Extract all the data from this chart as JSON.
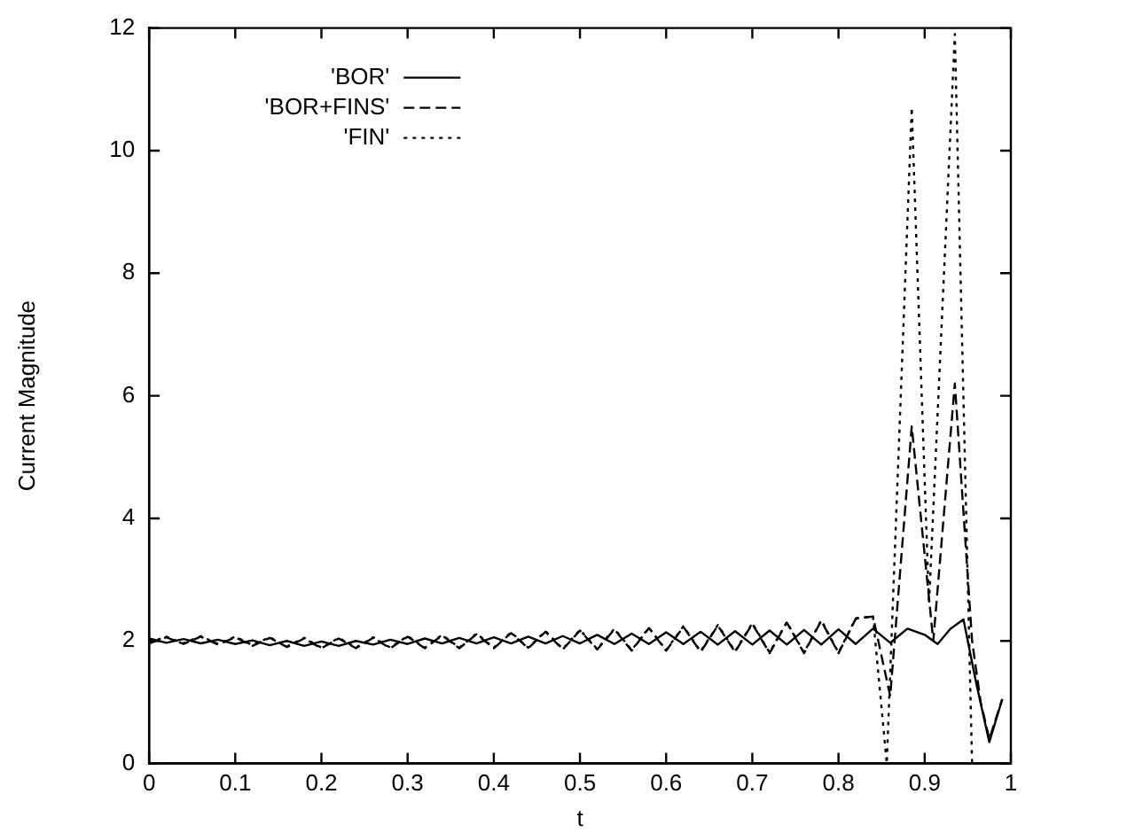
{
  "chart_data": {
    "type": "line",
    "xlabel": "t",
    "ylabel": "Current Magnitude",
    "xlim": [
      0,
      1
    ],
    "ylim": [
      0,
      12
    ],
    "xticks": [
      0,
      0.1,
      0.2,
      0.3,
      0.4,
      0.5,
      0.6,
      0.7,
      0.8,
      0.9,
      1
    ],
    "yticks": [
      0,
      2,
      4,
      6,
      8,
      10,
      12
    ],
    "grid": false,
    "legend": "top",
    "marker": "none",
    "series": [
      {
        "name": "'BOR'",
        "color": "#000000",
        "line_style": "solid",
        "x": [
          0,
          0.02,
          0.04,
          0.06,
          0.08,
          0.1,
          0.12,
          0.14,
          0.16,
          0.18,
          0.2,
          0.22,
          0.24,
          0.26,
          0.28,
          0.3,
          0.32,
          0.34,
          0.36,
          0.38,
          0.4,
          0.42,
          0.44,
          0.46,
          0.48,
          0.5,
          0.52,
          0.54,
          0.56,
          0.58,
          0.6,
          0.62,
          0.64,
          0.66,
          0.68,
          0.7,
          0.72,
          0.74,
          0.76,
          0.78,
          0.8,
          0.82,
          0.84,
          0.86,
          0.88,
          0.9,
          0.915,
          0.93,
          0.945,
          0.96,
          0.975,
          0.99
        ],
        "values": [
          2.04,
          1.97,
          2.03,
          1.96,
          2.02,
          1.95,
          2.01,
          1.93,
          2.0,
          1.92,
          1.99,
          1.92,
          2.0,
          1.94,
          2.02,
          1.95,
          2.04,
          1.96,
          2.05,
          1.96,
          2.06,
          1.96,
          2.07,
          1.96,
          2.08,
          1.96,
          2.1,
          1.95,
          2.12,
          1.95,
          2.14,
          1.95,
          2.15,
          1.94,
          2.16,
          1.94,
          2.17,
          1.94,
          2.18,
          1.94,
          2.19,
          1.95,
          2.2,
          1.97,
          2.2,
          2.1,
          1.95,
          2.2,
          2.35,
          1.3,
          0.35,
          1.05
        ]
      },
      {
        "name": "'BOR+FINS'",
        "color": "#000000",
        "line_style": "dashed",
        "x": [
          0,
          0.02,
          0.04,
          0.06,
          0.08,
          0.1,
          0.12,
          0.14,
          0.16,
          0.18,
          0.2,
          0.22,
          0.24,
          0.26,
          0.28,
          0.3,
          0.32,
          0.34,
          0.36,
          0.38,
          0.4,
          0.42,
          0.44,
          0.46,
          0.48,
          0.5,
          0.52,
          0.54,
          0.56,
          0.58,
          0.6,
          0.62,
          0.64,
          0.66,
          0.68,
          0.7,
          0.72,
          0.74,
          0.76,
          0.78,
          0.8,
          0.82,
          0.84,
          0.86,
          0.885,
          0.91,
          0.935,
          0.955,
          0.965,
          0.975,
          0.99
        ],
        "values": [
          1.96,
          2.06,
          1.95,
          2.07,
          1.94,
          2.06,
          1.92,
          2.05,
          1.9,
          2.04,
          1.88,
          2.04,
          1.88,
          2.05,
          1.88,
          2.07,
          1.88,
          2.09,
          1.88,
          2.11,
          1.88,
          2.13,
          1.88,
          2.15,
          1.86,
          2.17,
          1.86,
          2.19,
          1.84,
          2.21,
          1.84,
          2.23,
          1.82,
          2.25,
          1.82,
          2.28,
          1.8,
          2.3,
          1.8,
          2.33,
          1.8,
          2.36,
          2.4,
          1.1,
          5.5,
          2.0,
          6.2,
          2.0,
          1.0,
          0.4,
          1.05
        ]
      },
      {
        "name": "'FIN'",
        "color": "#000000",
        "line_style": "dotted",
        "x": [
          0,
          0.02,
          0.04,
          0.06,
          0.08,
          0.1,
          0.12,
          0.14,
          0.16,
          0.18,
          0.2,
          0.22,
          0.24,
          0.26,
          0.28,
          0.3,
          0.32,
          0.34,
          0.36,
          0.38,
          0.4,
          0.42,
          0.44,
          0.46,
          0.48,
          0.5,
          0.52,
          0.54,
          0.56,
          0.58,
          0.6,
          0.62,
          0.64,
          0.66,
          0.68,
          0.7,
          0.72,
          0.74,
          0.76,
          0.78,
          0.8,
          0.82,
          0.84,
          0.856,
          0.885,
          0.905,
          0.935,
          0.955
        ],
        "values": [
          1.97,
          2.07,
          1.96,
          2.08,
          1.95,
          2.07,
          1.93,
          2.06,
          1.91,
          2.05,
          1.89,
          2.05,
          1.89,
          2.06,
          1.89,
          2.08,
          1.89,
          2.1,
          1.89,
          2.12,
          1.89,
          2.14,
          1.89,
          2.16,
          1.87,
          2.18,
          1.87,
          2.2,
          1.85,
          2.22,
          1.85,
          2.24,
          1.83,
          2.26,
          1.83,
          2.29,
          1.81,
          2.31,
          1.81,
          2.34,
          1.81,
          2.37,
          2.4,
          0,
          10.7,
          2.6,
          11.9,
          0
        ]
      }
    ]
  }
}
